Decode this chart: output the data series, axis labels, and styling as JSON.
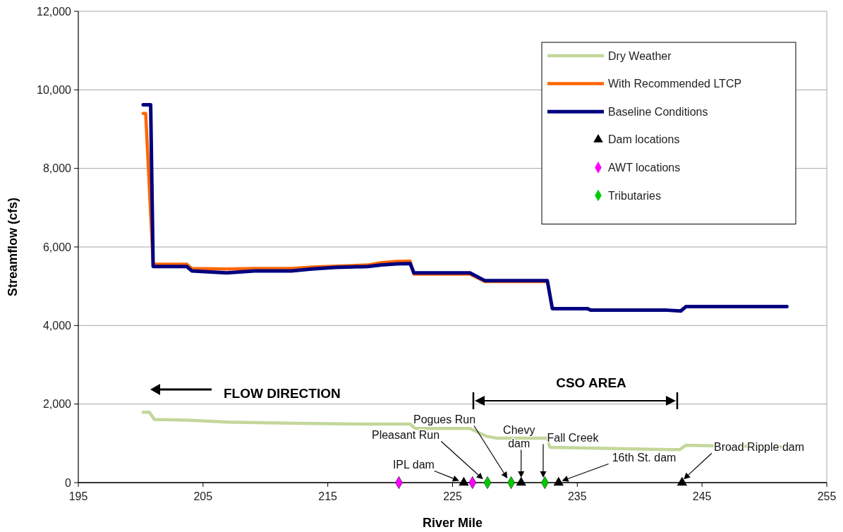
{
  "chart_data": {
    "type": "line",
    "xlabel": "River Mile",
    "ylabel": "Streamflow (cfs)",
    "xlim": [
      195,
      255
    ],
    "xticks": [
      195,
      205,
      215,
      225,
      235,
      245,
      255
    ],
    "ylim": [
      0,
      12000
    ],
    "yticks": [
      {
        "value": 0,
        "label": "0"
      },
      {
        "value": 2000,
        "label": "2,000"
      },
      {
        "value": 4000,
        "label": "4,000"
      },
      {
        "value": 6000,
        "label": "6,000"
      },
      {
        "value": 8000,
        "label": "8,000"
      },
      {
        "value": 10000,
        "label": "10,000"
      },
      {
        "value": 12000,
        "label": "12,000"
      }
    ],
    "grid": "y",
    "legend": "top right",
    "series": [
      {
        "name": "Dry Weather",
        "color": "#c4d79b",
        "x": [
          200.2,
          200.7,
          201.1,
          203.8,
          207.0,
          212.7,
          218.2,
          221.6,
          222.0,
          226.4,
          227.7,
          228.6,
          232.6,
          232.8,
          235.8,
          242.5,
          243.2,
          243.7,
          251.3
        ],
        "values": [
          1790,
          1790,
          1610,
          1590,
          1540,
          1510,
          1490,
          1490,
          1380,
          1380,
          1180,
          1130,
          1130,
          900,
          880,
          840,
          840,
          950,
          910
        ]
      },
      {
        "name": "With Recommended LTCP",
        "color": "#ff6600",
        "x": [
          200.2,
          200.4,
          201.0,
          203.7,
          204.1,
          206.9,
          209.1,
          212.1,
          213.7,
          215.6,
          218.2,
          219.3,
          220.5,
          221.6,
          221.9,
          226.4,
          227.6,
          232.6
        ],
        "values": [
          9400,
          9400,
          5560,
          5560,
          5450,
          5440,
          5450,
          5450,
          5490,
          5510,
          5540,
          5600,
          5630,
          5640,
          5310,
          5310,
          5120,
          5120
        ]
      },
      {
        "name": "Baseline Conditions",
        "color": "#000080",
        "x": [
          200.2,
          200.8,
          201.0,
          203.7,
          204.1,
          206.9,
          209.1,
          212.1,
          213.7,
          215.6,
          218.2,
          219.3,
          220.5,
          221.6,
          221.9,
          226.4,
          227.6,
          232.6,
          233.0,
          235.8,
          236.1,
          242.2,
          243.3,
          243.7,
          251.8
        ],
        "values": [
          9620,
          9620,
          5500,
          5500,
          5390,
          5340,
          5390,
          5390,
          5440,
          5480,
          5500,
          5540,
          5570,
          5580,
          5340,
          5340,
          5140,
          5140,
          4430,
          4430,
          4390,
          4390,
          4370,
          4480,
          4480
        ]
      },
      {
        "name": "Dam locations",
        "color": "#000000",
        "type": "scatter",
        "marker": "triangle",
        "x": [
          225.9,
          230.5,
          233.5,
          243.4
        ],
        "values": [
          0,
          0,
          0,
          0
        ]
      },
      {
        "name": "AWT locations",
        "color": "#ff00ff",
        "type": "scatter",
        "marker": "diamond",
        "x": [
          220.7,
          226.6
        ],
        "values": [
          0,
          0
        ]
      },
      {
        "name": "Tributaries",
        "color": "#00cc00",
        "type": "scatter",
        "marker": "diamond",
        "x": [
          227.8,
          229.7,
          232.4
        ],
        "values": [
          0,
          0,
          0
        ]
      }
    ],
    "annotations": [
      "FLOW DIRECTION",
      "CSO AREA",
      {
        "text": "IPL dam",
        "x": 225.9,
        "y": 0
      },
      "Pleasant Run",
      "Pogues Run",
      {
        "text": "Chevy dam",
        "x": 230.5,
        "y": 0
      },
      "Fall Creek",
      "16th St. dam",
      "Broad Ripple dam"
    ]
  }
}
